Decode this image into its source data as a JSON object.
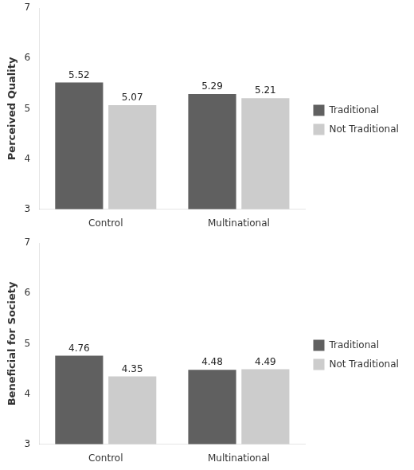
{
  "chart_data": [
    {
      "type": "bar",
      "ylabel": "Perceived Quality",
      "categories": [
        "Control",
        "Multinational"
      ],
      "series": [
        {
          "name": "Traditional",
          "color": "#606060",
          "values": [
            5.52,
            5.29
          ]
        },
        {
          "name": "Not Traditional",
          "color": "#cccccc",
          "values": [
            5.07,
            5.21
          ]
        }
      ],
      "ylim": [
        3,
        7
      ],
      "yticks": [
        3,
        4,
        5,
        6,
        7
      ],
      "grid": false,
      "legend": "right",
      "data_labels": true
    },
    {
      "type": "bar",
      "ylabel": "Beneficial for Society",
      "categories": [
        "Control",
        "Multinational"
      ],
      "series": [
        {
          "name": "Traditional",
          "color": "#606060",
          "values": [
            4.76,
            4.48
          ]
        },
        {
          "name": "Not Traditional",
          "color": "#cccccc",
          "values": [
            4.35,
            4.49
          ]
        }
      ],
      "ylim": [
        3,
        7
      ],
      "yticks": [
        3,
        4,
        5,
        6,
        7
      ],
      "grid": false,
      "legend": "right",
      "data_labels": true
    }
  ]
}
